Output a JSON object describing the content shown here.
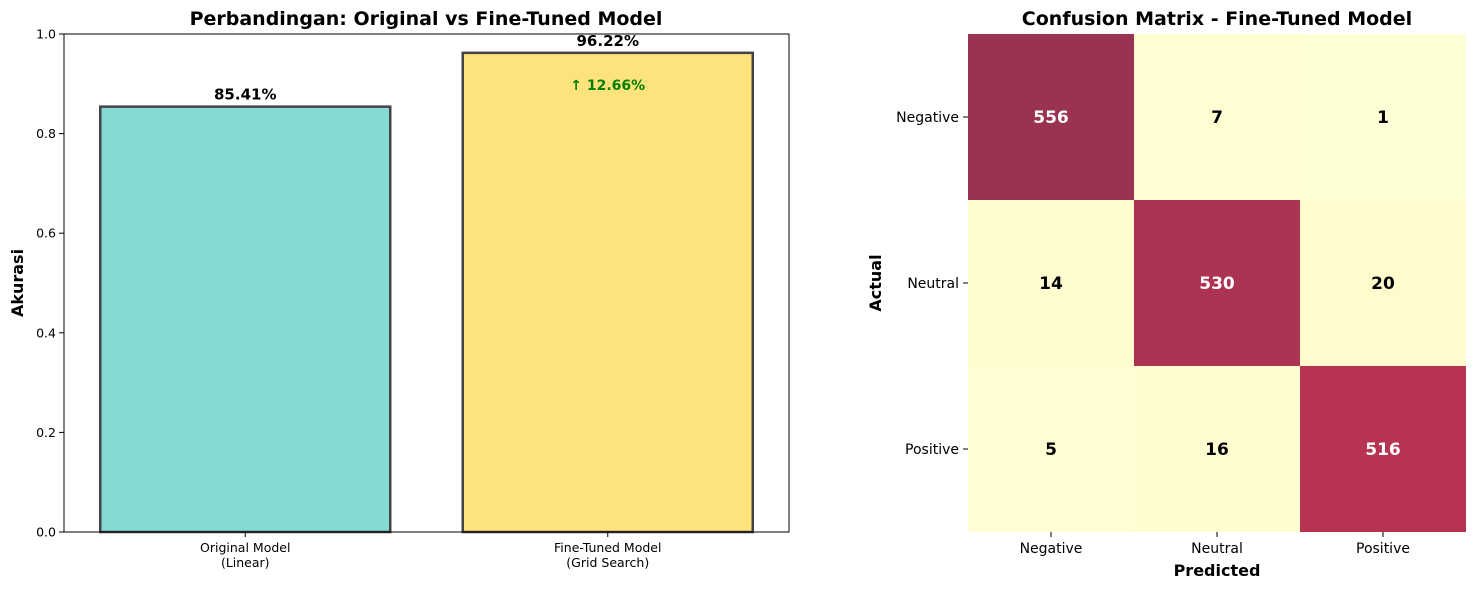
{
  "chart_data": [
    {
      "type": "bar",
      "title": "Perbandingan: Original vs Fine-Tuned Model",
      "xlabel": "",
      "ylabel": "Akurasi",
      "ylim": [
        0,
        1.0
      ],
      "yticks": [
        "0.0",
        "0.2",
        "0.4",
        "0.6",
        "0.8",
        "1.0"
      ],
      "categories": [
        [
          "Original Model",
          "(Linear)"
        ],
        [
          "Fine-Tuned Model",
          "(Grid Search)"
        ]
      ],
      "values": [
        0.8541,
        0.9622
      ],
      "data_labels": [
        "85.41%",
        "96.22%"
      ],
      "colors": [
        "#84dbd4",
        "#fee27c"
      ],
      "edge_color": "#444444",
      "annotation": {
        "text": "↑ 12.66%",
        "color": "#008000",
        "on_category": 1
      },
      "grid": false
    },
    {
      "type": "heatmap",
      "title": "Confusion Matrix - Fine-Tuned Model",
      "xlabel": "Predicted",
      "ylabel": "Actual",
      "x_categories": [
        "Negative",
        "Neutral",
        "Positive"
      ],
      "y_categories": [
        "Negative",
        "Neutral",
        "Positive"
      ],
      "values": [
        [
          556,
          7,
          1
        ],
        [
          14,
          530,
          20
        ],
        [
          5,
          16,
          516
        ]
      ],
      "colormap": "YlOrRd",
      "colorbar": false,
      "grid": false
    }
  ]
}
